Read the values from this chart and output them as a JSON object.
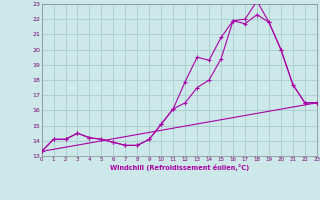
{
  "xlabel": "Windchill (Refroidissement éolien,°C)",
  "bg_color": "#cce8e8",
  "grid_color": "#a8cccc",
  "line_color": "#aa00aa",
  "xlim": [
    0,
    23
  ],
  "ylim": [
    13,
    23
  ],
  "xticks": [
    0,
    1,
    2,
    3,
    4,
    5,
    6,
    7,
    8,
    9,
    10,
    11,
    12,
    13,
    14,
    15,
    16,
    17,
    18,
    19,
    20,
    21,
    22,
    23
  ],
  "yticks": [
    13,
    14,
    15,
    16,
    17,
    18,
    19,
    20,
    21,
    22,
    23
  ],
  "line1_x": [
    0,
    1,
    2,
    3,
    4,
    5,
    6,
    7,
    8,
    9,
    10,
    11,
    12,
    13,
    14,
    15,
    16,
    17,
    18,
    19,
    20,
    21,
    22,
    23
  ],
  "line1_y": [
    13.3,
    14.1,
    14.1,
    14.5,
    14.2,
    14.1,
    13.9,
    13.7,
    13.7,
    14.1,
    15.1,
    16.1,
    16.5,
    17.5,
    18.0,
    19.4,
    21.9,
    21.7,
    22.3,
    21.8,
    20.0,
    17.7,
    16.5,
    16.5
  ],
  "line2_x": [
    0,
    1,
    2,
    3,
    4,
    5,
    6,
    7,
    8,
    9,
    10,
    11,
    12,
    13,
    14,
    15,
    16,
    17,
    18,
    19,
    20,
    21,
    22,
    23
  ],
  "line2_y": [
    13.3,
    14.1,
    14.1,
    14.5,
    14.2,
    14.1,
    13.9,
    13.7,
    13.7,
    14.1,
    15.1,
    16.1,
    17.9,
    19.5,
    19.3,
    20.8,
    21.9,
    22.0,
    23.2,
    21.8,
    20.0,
    17.7,
    16.5,
    16.5
  ],
  "line3_x": [
    0,
    23
  ],
  "line3_y": [
    13.3,
    16.5
  ]
}
